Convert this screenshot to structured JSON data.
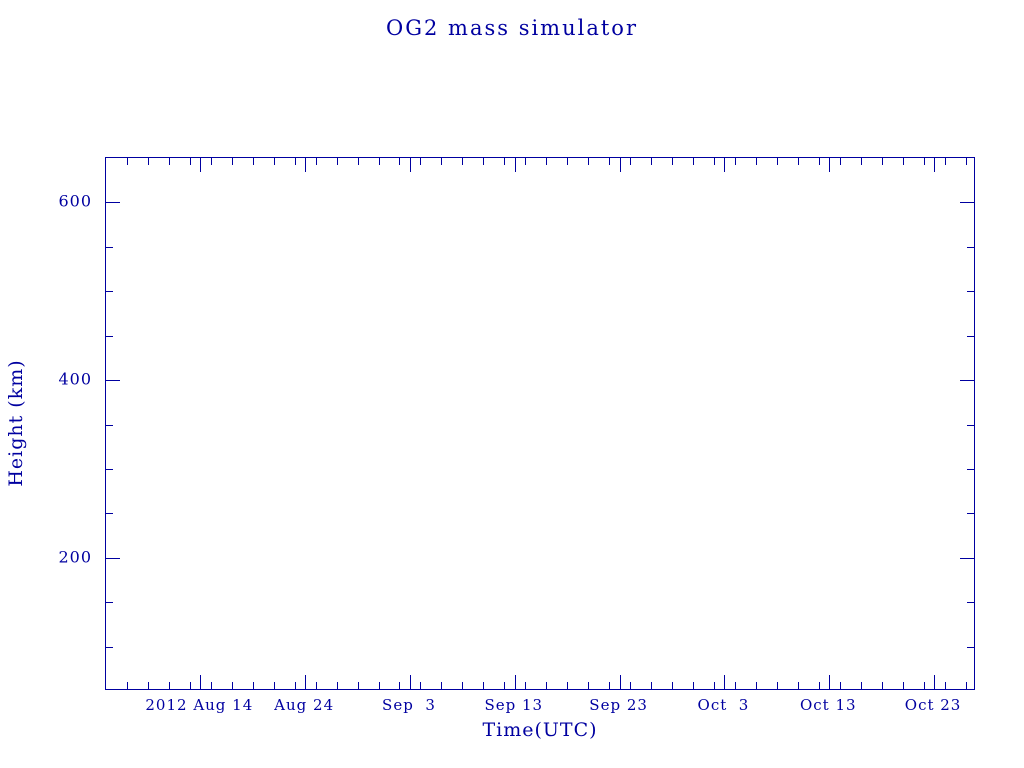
{
  "page": {
    "background": "#ffffff",
    "accent": "#0000a0"
  },
  "chart_data": {
    "type": "line",
    "title": "OG2 mass simulator",
    "xlabel": "Time(UTC)",
    "ylabel": "Height (km)",
    "grid": false,
    "legend": "none",
    "x_axis": {
      "unit": "date",
      "range_days": [
        0,
        83
      ],
      "major_ticks": [
        {
          "day": 9,
          "label": "2012 Aug 14"
        },
        {
          "day": 19,
          "label": "Aug 24"
        },
        {
          "day": 29,
          "label": "Sep  3"
        },
        {
          "day": 39,
          "label": "Sep 13"
        },
        {
          "day": 49,
          "label": "Sep 23"
        },
        {
          "day": 59,
          "label": "Oct  3"
        },
        {
          "day": 69,
          "label": "Oct 13"
        },
        {
          "day": 79,
          "label": "Oct 23"
        }
      ],
      "minor_tick_interval_days": 2
    },
    "y_axis": {
      "unit": "km",
      "range": [
        50,
        650
      ],
      "major_ticks": [
        {
          "value": 200,
          "label": "200"
        },
        {
          "value": 400,
          "label": "400"
        },
        {
          "value": 600,
          "label": "600"
        }
      ],
      "minor_tick_interval": 50
    },
    "series": []
  }
}
